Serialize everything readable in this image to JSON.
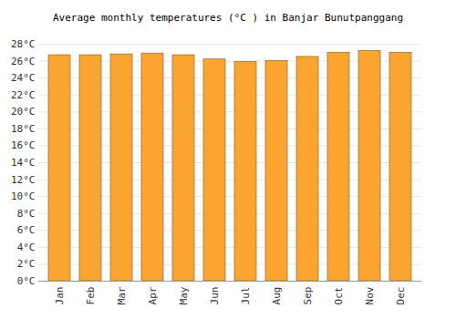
{
  "chart_data": {
    "type": "bar",
    "title": "Average monthly temperatures (°C ) in Banjar Bunutpanggang",
    "categories": [
      "Jan",
      "Feb",
      "Mar",
      "Apr",
      "May",
      "Jun",
      "Jul",
      "Aug",
      "Sep",
      "Oct",
      "Nov",
      "Dec"
    ],
    "values": [
      26.7,
      26.7,
      26.8,
      26.9,
      26.7,
      26.2,
      25.9,
      26.0,
      26.5,
      27.0,
      27.2,
      27.0
    ],
    "color": "#fba430",
    "ylim": [
      0,
      28
    ],
    "yticks": [
      {
        "value": 0,
        "label": "0°C"
      },
      {
        "value": 2,
        "label": "2°C"
      },
      {
        "value": 4,
        "label": "4°C"
      },
      {
        "value": 6,
        "label": "6°C"
      },
      {
        "value": 8,
        "label": "8°C"
      },
      {
        "value": 10,
        "label": "10°C"
      },
      {
        "value": 12,
        "label": "12°C"
      },
      {
        "value": 14,
        "label": "14°C"
      },
      {
        "value": 16,
        "label": "16°C"
      },
      {
        "value": 18,
        "label": "18°C"
      },
      {
        "value": 20,
        "label": "20°C"
      },
      {
        "value": 22,
        "label": "22°C"
      },
      {
        "value": 24,
        "label": "24°C"
      },
      {
        "value": 26,
        "label": "26°C"
      },
      {
        "value": 28,
        "label": "28°C"
      }
    ],
    "grid": true
  }
}
